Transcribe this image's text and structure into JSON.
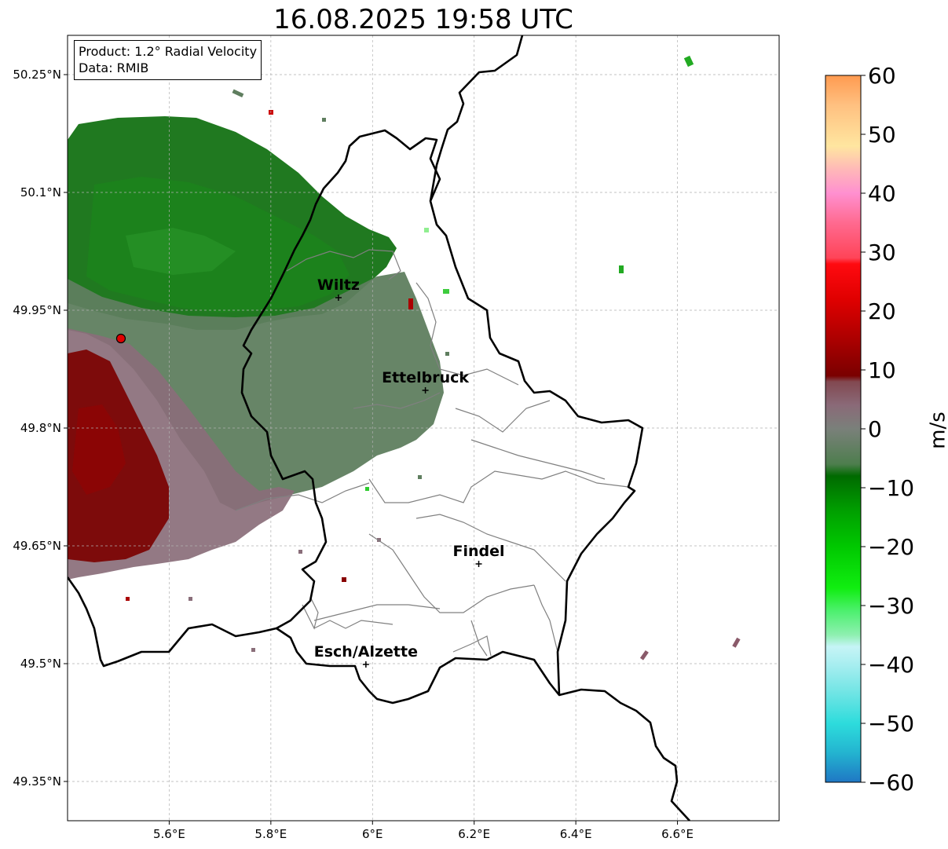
{
  "title": "16.08.2025 19:58 UTC",
  "info": {
    "product": "Product: 1.2° Radial Velocity",
    "data": "Data: RMIB"
  },
  "map": {
    "lon_range": [
      5.4,
      6.8
    ],
    "lat_range": [
      49.3,
      50.3
    ],
    "lon_ticks": [
      {
        "value": 5.6,
        "label": "5.6°E"
      },
      {
        "value": 5.8,
        "label": "5.8°E"
      },
      {
        "value": 6.0,
        "label": "6°E"
      },
      {
        "value": 6.2,
        "label": "6.2°E"
      },
      {
        "value": 6.4,
        "label": "6.4°E"
      },
      {
        "value": 6.6,
        "label": "6.6°E"
      }
    ],
    "lat_ticks": [
      {
        "value": 50.25,
        "label": "50.25°N"
      },
      {
        "value": 50.1,
        "label": "50.1°N"
      },
      {
        "value": 49.95,
        "label": "49.95°N"
      },
      {
        "value": 49.8,
        "label": "49.8°N"
      },
      {
        "value": 49.65,
        "label": "49.65°N"
      },
      {
        "value": 49.5,
        "label": "49.5°N"
      },
      {
        "value": 49.35,
        "label": "49.35°N"
      }
    ],
    "grid": true,
    "radar_site": {
      "lon": 5.505,
      "lat": 49.914
    },
    "cities": [
      {
        "name": "Wiltz",
        "lon": 5.933,
        "lat": 49.966
      },
      {
        "name": "Ettelbruck",
        "lon": 6.104,
        "lat": 49.848
      },
      {
        "name": "Findel",
        "lon": 6.209,
        "lat": 49.627
      },
      {
        "name": "Esch/Alzette",
        "lon": 5.987,
        "lat": 49.499
      }
    ]
  },
  "colorbar": {
    "label": "m/s",
    "min": -60,
    "max": 60,
    "ticks": [
      {
        "value": 60,
        "label": "60"
      },
      {
        "value": 50,
        "label": "50"
      },
      {
        "value": 40,
        "label": "40"
      },
      {
        "value": 30,
        "label": "30"
      },
      {
        "value": 20,
        "label": "20"
      },
      {
        "value": 10,
        "label": "10"
      },
      {
        "value": 0,
        "label": "0"
      },
      {
        "value": -10,
        "label": "−10"
      },
      {
        "value": -20,
        "label": "−20"
      },
      {
        "value": -30,
        "label": "−30"
      },
      {
        "value": -40,
        "label": "−40"
      },
      {
        "value": -50,
        "label": "−50"
      },
      {
        "value": -60,
        "label": "−60"
      }
    ],
    "stops": [
      {
        "value": -60,
        "color": "#1f77c4"
      },
      {
        "value": -55,
        "color": "#23b4d0"
      },
      {
        "value": -50,
        "color": "#2ddcdc"
      },
      {
        "value": -45,
        "color": "#6ee4e4"
      },
      {
        "value": -40,
        "color": "#a8eef0"
      },
      {
        "value": -37,
        "color": "#c6f4f6"
      },
      {
        "value": -35,
        "color": "#8ef0b0"
      },
      {
        "value": -31,
        "color": "#4ef070"
      },
      {
        "value": -27,
        "color": "#10ee10"
      },
      {
        "value": -20,
        "color": "#00c800"
      },
      {
        "value": -14,
        "color": "#00a000"
      },
      {
        "value": -8,
        "color": "#006a00"
      },
      {
        "value": -6,
        "color": "#4e7e4e"
      },
      {
        "value": 0,
        "color": "#7a807a"
      },
      {
        "value": 4,
        "color": "#8a6a78"
      },
      {
        "value": 8,
        "color": "#824850"
      },
      {
        "value": 9,
        "color": "#7a0000"
      },
      {
        "value": 15,
        "color": "#aa0000"
      },
      {
        "value": 22,
        "color": "#e00000"
      },
      {
        "value": 28,
        "color": "#ff0a10"
      },
      {
        "value": 29,
        "color": "#ff4458"
      },
      {
        "value": 35,
        "color": "#ff6a90"
      },
      {
        "value": 40,
        "color": "#ff90d0"
      },
      {
        "value": 44,
        "color": "#ffb8b8"
      },
      {
        "value": 48,
        "color": "#ffe6a0"
      },
      {
        "value": 55,
        "color": "#ffc080"
      },
      {
        "value": 60,
        "color": "#ff9a50"
      }
    ]
  },
  "colors": {
    "border": "#000000",
    "canton": "#808080",
    "grid": "#b0b0b0",
    "radar_site": "#e00000"
  }
}
